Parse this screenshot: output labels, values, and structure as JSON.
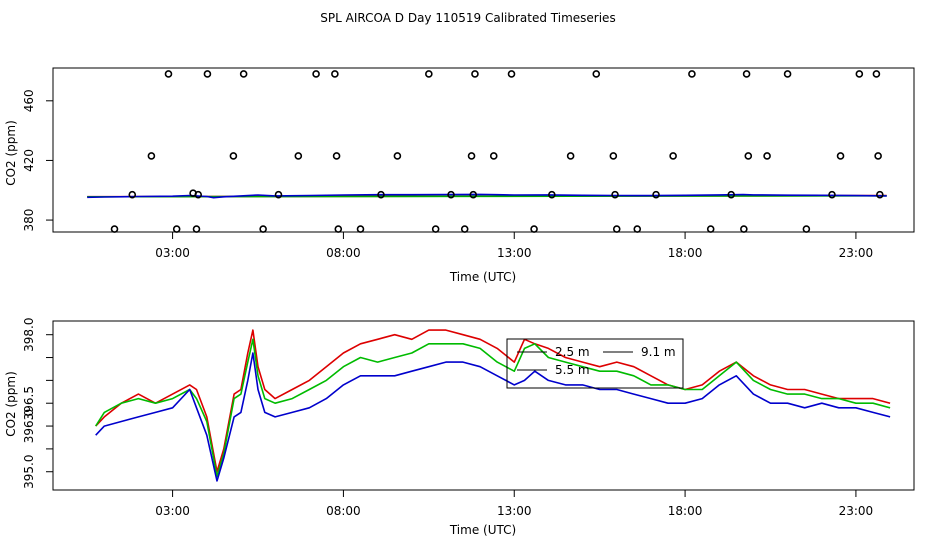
{
  "title": "SPL AIRCOA D  Day 110519  Calibrated Timeseries",
  "chart_data": [
    {
      "type": "scatter",
      "xlabel": "Time (UTC)",
      "ylabel": "CO2 (ppm)",
      "x_unit": "hours",
      "xlim": [
        -0.5,
        24.7
      ],
      "ylim": [
        372,
        482
      ],
      "xticks": [
        {
          "value": 3,
          "label": "03:00"
        },
        {
          "value": 8,
          "label": "08:00"
        },
        {
          "value": 13,
          "label": "13:00"
        },
        {
          "value": 18,
          "label": "18:00"
        },
        {
          "value": 23,
          "label": "23:00"
        }
      ],
      "yticks": [
        380,
        420,
        460
      ],
      "points_x": [
        1.3,
        1.82,
        2.38,
        2.88,
        3.12,
        3.6,
        3.7,
        3.75,
        4.02,
        4.78,
        5.08,
        5.65,
        6.1,
        6.68,
        7.2,
        7.75,
        7.8,
        7.85,
        8.5,
        9.1,
        9.58,
        10.5,
        10.7,
        11.15,
        11.55,
        11.75,
        11.8,
        11.85,
        12.4,
        12.92,
        13.58,
        14.1,
        14.65,
        15.4,
        15.9,
        15.95,
        16.0,
        16.6,
        17.15,
        17.65,
        18.2,
        18.75,
        19.35,
        19.72,
        19.8,
        19.85,
        20.4,
        21.0,
        21.55,
        22.3,
        22.55,
        23.1,
        23.6,
        23.65,
        23.7
      ],
      "points_y": [
        374,
        397,
        423,
        478,
        374,
        398,
        374,
        397,
        478,
        423,
        478,
        374,
        397,
        423,
        478,
        478,
        423,
        374,
        374,
        397,
        423,
        478,
        374,
        397,
        374,
        423,
        397,
        478,
        423,
        478,
        374,
        397,
        423,
        478,
        423,
        397,
        374,
        374,
        397,
        423,
        478,
        374,
        397,
        374,
        478,
        423,
        423,
        478,
        374,
        397,
        423,
        478,
        478,
        423,
        397
      ],
      "series": [
        {
          "color": "#cc0000",
          "x": [
            0.5,
            23.9
          ],
          "y": [
            395.7,
            396.4
          ]
        },
        {
          "color": "#00aa00",
          "x": [
            0.5,
            23.9
          ],
          "y": [
            395.6,
            396.3
          ]
        },
        {
          "color": "#0000cc",
          "x": [
            0.5,
            1.0,
            2.0,
            3.0,
            3.5,
            4.0,
            4.2,
            4.5,
            5.0,
            5.5,
            6.0,
            7.0,
            8.0,
            9.0,
            10.0,
            11.0,
            12.0,
            12.5,
            13.0,
            14.0,
            15.0,
            16.0,
            17.0,
            18.0,
            19.0,
            19.7,
            20.0,
            21.0,
            22.0,
            23.0,
            23.9
          ],
          "y": [
            395.3,
            395.5,
            395.8,
            396.0,
            396.5,
            395.8,
            395.0,
            395.6,
            396.2,
            396.8,
            396.2,
            396.5,
            396.8,
            397.0,
            397.0,
            397.1,
            397.2,
            397.0,
            396.8,
            396.9,
            396.6,
            396.5,
            396.4,
            396.6,
            396.9,
            397.1,
            396.9,
            396.7,
            396.6,
            396.4,
            396.2
          ]
        }
      ]
    },
    {
      "type": "line",
      "xlabel": "Time (UTC)",
      "ylabel": "CO2 (ppm)",
      "x_unit": "hours",
      "xlim": [
        -0.5,
        24.7
      ],
      "ylim": [
        394.6,
        398.3
      ],
      "xticks": [
        {
          "value": 3,
          "label": "03:00"
        },
        {
          "value": 8,
          "label": "08:00"
        },
        {
          "value": 13,
          "label": "13:00"
        },
        {
          "value": 18,
          "label": "18:00"
        },
        {
          "value": 23,
          "label": "23:00"
        }
      ],
      "yticks": [
        {
          "value": 395.0,
          "label": "395.0"
        },
        {
          "value": 395.5,
          "label": ""
        },
        {
          "value": 396.0,
          "label": "396.0"
        },
        {
          "value": 396.5,
          "label": "396.5"
        },
        {
          "value": 397.0,
          "label": ""
        },
        {
          "value": 397.5,
          "label": ""
        },
        {
          "value": 398.0,
          "label": "398.0"
        }
      ],
      "legend": {
        "position": "top-right",
        "entries": [
          {
            "label": "2.5 m",
            "color": "#000000"
          },
          {
            "label": "9.1 m",
            "color": "#000000"
          },
          {
            "label": "5.5 m",
            "color": "#000000"
          }
        ]
      },
      "series": [
        {
          "color": "#dd0000",
          "x": [
            0.75,
            1.0,
            1.5,
            2.0,
            2.5,
            3.0,
            3.5,
            3.7,
            4.0,
            4.3,
            4.5,
            4.8,
            5.0,
            5.2,
            5.35,
            5.5,
            5.7,
            6.0,
            6.5,
            7.0,
            7.5,
            8.0,
            8.5,
            9.0,
            9.5,
            10.0,
            10.5,
            11.0,
            11.5,
            12.0,
            12.5,
            13.0,
            13.3,
            13.6,
            14.0,
            14.5,
            15.0,
            15.5,
            16.0,
            16.5,
            17.0,
            17.5,
            18.0,
            18.5,
            19.0,
            19.5,
            20.0,
            20.5,
            21.0,
            21.5,
            22.0,
            22.5,
            23.0,
            23.5,
            24.0
          ],
          "y": [
            396.0,
            396.2,
            396.5,
            396.7,
            396.5,
            396.7,
            396.9,
            396.8,
            396.2,
            395.0,
            395.5,
            396.7,
            396.8,
            397.6,
            398.1,
            397.3,
            396.8,
            396.6,
            396.8,
            397.0,
            397.3,
            397.6,
            397.8,
            397.9,
            398.0,
            397.9,
            398.1,
            398.1,
            398.0,
            397.9,
            397.7,
            397.4,
            397.9,
            397.8,
            397.7,
            397.5,
            397.4,
            397.3,
            397.4,
            397.3,
            397.1,
            396.9,
            396.8,
            396.9,
            397.2,
            397.4,
            397.1,
            396.9,
            396.8,
            396.8,
            396.7,
            396.6,
            396.6,
            396.6,
            396.5
          ]
        },
        {
          "color": "#00bb00",
          "x": [
            0.75,
            1.0,
            1.5,
            2.0,
            2.5,
            3.0,
            3.5,
            3.7,
            4.0,
            4.3,
            4.5,
            4.8,
            5.0,
            5.2,
            5.35,
            5.5,
            5.7,
            6.0,
            6.5,
            7.0,
            7.5,
            8.0,
            8.5,
            9.0,
            9.5,
            10.0,
            10.5,
            11.0,
            11.5,
            12.0,
            12.5,
            13.0,
            13.3,
            13.6,
            14.0,
            14.5,
            15.0,
            15.5,
            16.0,
            16.5,
            17.0,
            17.5,
            18.0,
            18.5,
            19.0,
            19.5,
            20.0,
            20.5,
            21.0,
            21.5,
            22.0,
            22.5,
            23.0,
            23.5,
            24.0
          ],
          "y": [
            396.0,
            396.3,
            396.5,
            396.6,
            396.5,
            396.6,
            396.8,
            396.6,
            396.1,
            394.9,
            395.4,
            396.6,
            396.7,
            397.4,
            397.9,
            397.1,
            396.6,
            396.5,
            396.6,
            396.8,
            397.0,
            397.3,
            397.5,
            397.4,
            397.5,
            397.6,
            397.8,
            397.8,
            397.8,
            397.7,
            397.4,
            397.2,
            397.7,
            397.8,
            397.5,
            397.4,
            397.3,
            397.2,
            397.2,
            397.1,
            396.9,
            396.9,
            396.8,
            396.8,
            397.1,
            397.4,
            397.0,
            396.8,
            396.7,
            396.7,
            396.6,
            396.6,
            396.5,
            396.5,
            396.4
          ]
        },
        {
          "color": "#0000cc",
          "x": [
            0.75,
            1.0,
            1.5,
            2.0,
            2.5,
            3.0,
            3.5,
            3.7,
            4.0,
            4.3,
            4.5,
            4.8,
            5.0,
            5.2,
            5.35,
            5.5,
            5.7,
            6.0,
            6.5,
            7.0,
            7.5,
            8.0,
            8.5,
            9.0,
            9.5,
            10.0,
            10.5,
            11.0,
            11.5,
            12.0,
            12.5,
            13.0,
            13.3,
            13.6,
            14.0,
            14.5,
            15.0,
            15.5,
            16.0,
            16.5,
            17.0,
            17.5,
            18.0,
            18.5,
            19.0,
            19.5,
            20.0,
            20.5,
            21.0,
            21.5,
            22.0,
            22.5,
            23.0,
            23.5,
            24.0
          ],
          "y": [
            395.8,
            396.0,
            396.1,
            396.2,
            396.3,
            396.4,
            396.8,
            396.4,
            395.8,
            394.8,
            395.3,
            396.2,
            396.3,
            397.0,
            397.6,
            396.8,
            396.3,
            396.2,
            396.3,
            396.4,
            396.6,
            396.9,
            397.1,
            397.1,
            397.1,
            397.2,
            397.3,
            397.4,
            397.4,
            397.3,
            397.1,
            396.9,
            397.0,
            397.2,
            397.0,
            396.9,
            396.9,
            396.8,
            396.8,
            396.7,
            396.6,
            396.5,
            396.5,
            396.6,
            396.9,
            397.1,
            396.7,
            396.5,
            396.5,
            396.4,
            396.5,
            396.4,
            396.4,
            396.3,
            396.2
          ]
        }
      ]
    }
  ]
}
